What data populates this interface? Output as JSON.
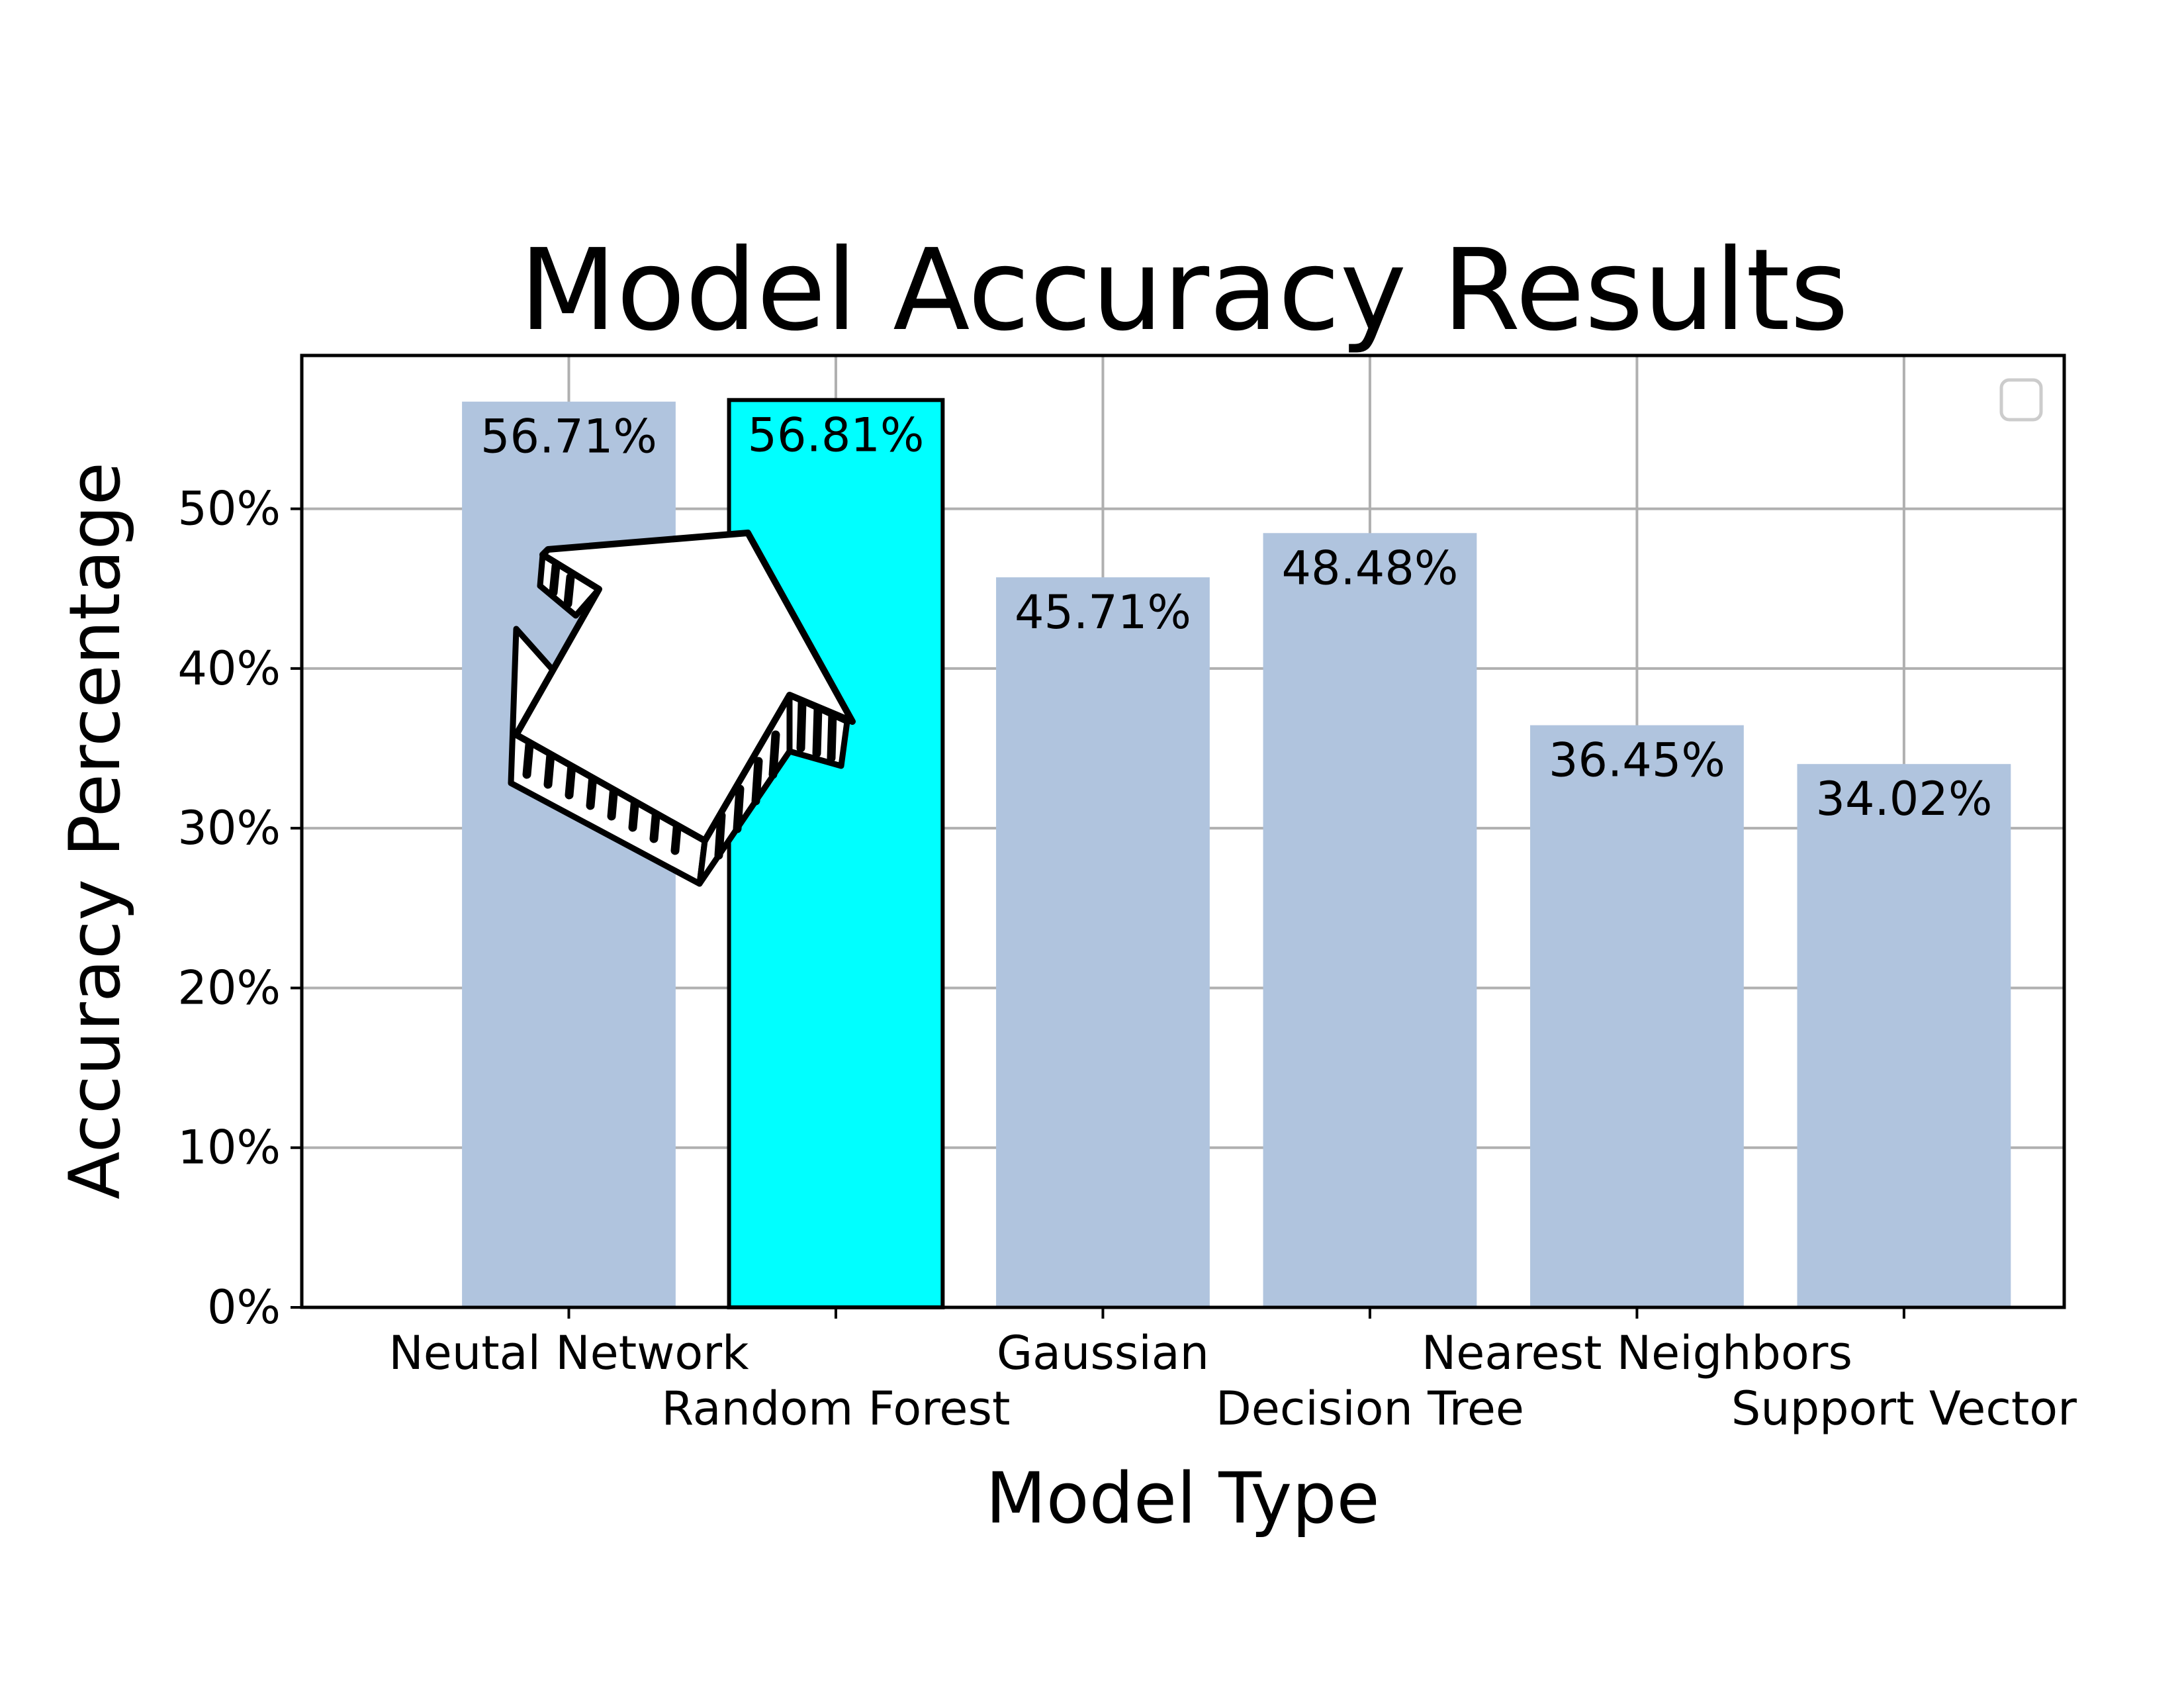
{
  "chart_data": {
    "type": "bar",
    "title": "Model Accuracy Results",
    "xlabel": "Model Type",
    "ylabel": "Accuracy Percentage",
    "categories": [
      "Neutal Network",
      "Random Forest",
      "Gaussian",
      "Decision Tree",
      "Nearest Neighbors",
      "Support Vector"
    ],
    "values": [
      56.71,
      56.81,
      45.71,
      48.48,
      36.45,
      34.02
    ],
    "value_labels": [
      "56.71%",
      "56.81%",
      "45.71%",
      "48.48%",
      "36.45%",
      "34.02%"
    ],
    "highlighted_index": 1,
    "ylim": [
      0,
      59.6
    ],
    "yticks": [
      0,
      10,
      20,
      30,
      40,
      50
    ],
    "ytick_labels": [
      "0%",
      "10%",
      "20%",
      "30%",
      "40%",
      "50%"
    ],
    "grid": true,
    "legend": "top-right (empty)",
    "annotation": "hand-drawn 3D arrow pointing up-right toward the Random Forest bar",
    "colors": {
      "bar": "#b0c4de",
      "highlight": "#00ffff",
      "grid": "#b0b0b0",
      "axis": "#000000",
      "legend_border": "#cccccc",
      "arrow_fill": "#ffffff",
      "arrow_stroke": "#000000"
    }
  }
}
